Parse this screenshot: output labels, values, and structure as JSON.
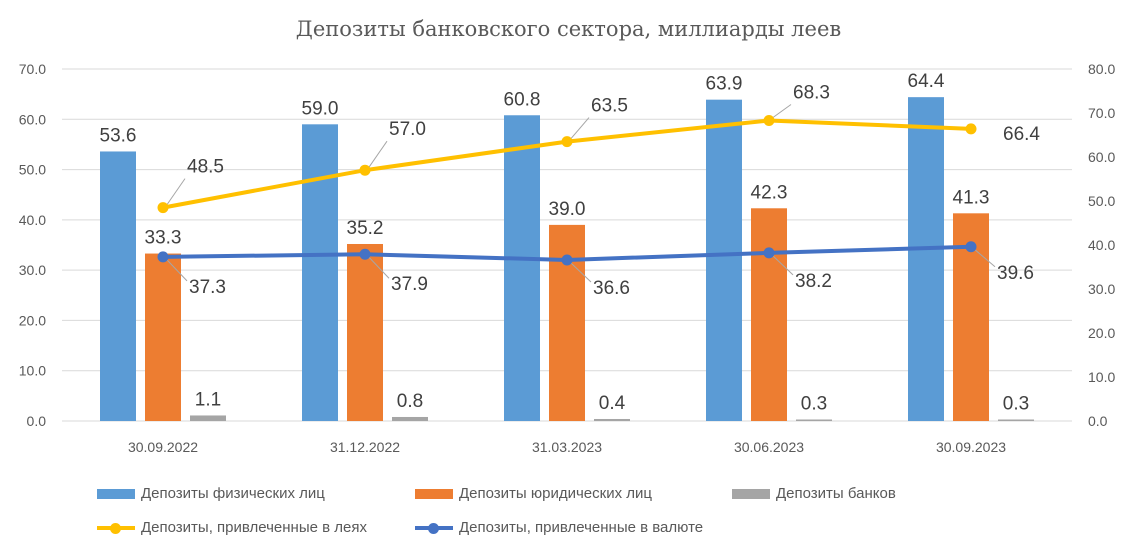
{
  "chart_data": {
    "type": "bar+line",
    "title": "Депозиты банковского сектора, миллиарды леев",
    "categories": [
      "30.09.2022",
      "31.12.2022",
      "31.03.2023",
      "30.06.2023",
      "30.09.2023"
    ],
    "y_left": {
      "range": [
        0,
        70
      ],
      "ticks": [
        "0.0",
        "10.0",
        "20.0",
        "30.0",
        "40.0",
        "50.0",
        "60.0",
        "70.0"
      ]
    },
    "y_right": {
      "range": [
        0,
        80
      ],
      "ticks": [
        "0.0",
        "10.0",
        "20.0",
        "30.0",
        "40.0",
        "50.0",
        "60.0",
        "70.0",
        "80.0"
      ]
    },
    "bar_series": [
      {
        "name": "Депозиты физических лиц",
        "color": "#5B9BD5",
        "axis": "left",
        "values": [
          53.6,
          59.0,
          60.8,
          63.9,
          64.4
        ],
        "labels": [
          "53.6",
          "59.0",
          "60.8",
          "63.9",
          "64.4"
        ]
      },
      {
        "name": "Депозиты юридических лиц",
        "color": "#ED7D31",
        "axis": "left",
        "values": [
          33.3,
          35.2,
          39.0,
          42.3,
          41.3
        ],
        "labels": [
          "33.3",
          "35.2",
          "39.0",
          "42.3",
          "41.3"
        ]
      },
      {
        "name": "Депозиты банков",
        "color": "#A5A5A5",
        "axis": "left",
        "values": [
          1.1,
          0.8,
          0.4,
          0.3,
          0.3
        ],
        "labels": [
          "1.1",
          "0.8",
          "0.4",
          "0.3",
          "0.3"
        ]
      }
    ],
    "line_series": [
      {
        "name": "Депозиты, привлеченные в леях",
        "color": "#FFC000",
        "axis": "right",
        "values": [
          48.5,
          57.0,
          63.5,
          68.3,
          66.4
        ],
        "labels": [
          "48.5",
          "57.0",
          "63.5",
          "68.3",
          "66.4"
        ]
      },
      {
        "name": "Депозиты, привлеченные в валюте",
        "color": "#4472C4",
        "axis": "right",
        "values": [
          37.3,
          37.9,
          36.6,
          38.2,
          39.6
        ],
        "labels": [
          "37.3",
          "37.9",
          "36.6",
          "38.2",
          "39.6"
        ]
      }
    ],
    "legend_position": "bottom",
    "grid": "horizontal"
  }
}
